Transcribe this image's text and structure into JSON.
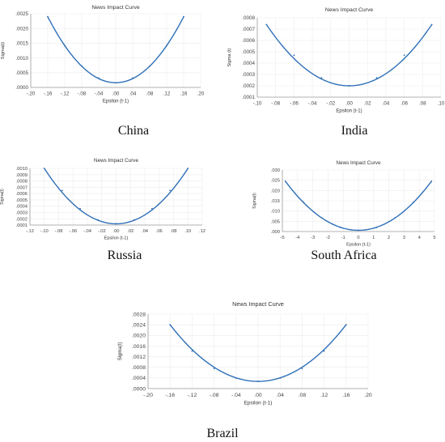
{
  "captions": [
    "China",
    "India",
    "Russia",
    "South Africa",
    "Brazil"
  ],
  "chart_data": [
    {
      "type": "line",
      "title": "News Impact Curve",
      "xlabel": "Epsilon (t-1)",
      "ylabel": "Sigma(t)",
      "xlim": [
        -0.2,
        0.2
      ],
      "ylim": [
        0.0,
        0.0025
      ],
      "xticks": [
        "-.20",
        "-.16",
        "-.12",
        "-.08",
        "-.04",
        ".00",
        ".04",
        ".08",
        ".12",
        ".16",
        ".20"
      ],
      "yticks": [
        ".0000",
        ".0005",
        ".0010",
        ".0015",
        ".0020",
        ".0025"
      ],
      "grid": true,
      "series": [
        {
          "x": [
            -0.16,
            -0.12,
            -0.08,
            -0.04,
            0.0,
            0.04,
            0.08,
            0.12,
            0.16
          ],
          "y": [
            0.0024,
            0.00142,
            0.00072,
            0.00032,
            0.00016,
            0.00032,
            0.00072,
            0.00142,
            0.0024
          ]
        }
      ]
    },
    {
      "type": "line",
      "title": "News Impact Curve",
      "xlabel": "Epsilon (t-1)",
      "ylabel": "Sigma (t)",
      "xlim": [
        -0.1,
        0.1
      ],
      "ylim": [
        0.0001,
        0.0008
      ],
      "xticks": [
        "-.10",
        "-.08",
        "-.06",
        "-.04",
        "-.02",
        ".00",
        ".02",
        ".04",
        ".06",
        ".08",
        ".10"
      ],
      "yticks": [
        ".0001",
        ".0002",
        ".0003",
        ".0004",
        ".0005",
        ".0006",
        ".0007",
        ".0008"
      ],
      "grid": true,
      "series": [
        {
          "x": [
            -0.09,
            -0.06,
            -0.03,
            0.0,
            0.03,
            0.06,
            0.09
          ],
          "y": [
            0.00074,
            0.00047,
            0.00027,
            0.0002,
            0.00027,
            0.00047,
            0.00074
          ]
        }
      ]
    },
    {
      "type": "line",
      "title": "News Impact Curve",
      "xlabel": "Epsilon (t-1)",
      "ylabel": "Sigma(t)",
      "xlim": [
        -0.12,
        0.12
      ],
      "ylim": [
        0.0001,
        0.001
      ],
      "xticks": [
        "-.12",
        "-.10",
        "-.08",
        "-.06",
        "-.04",
        "-.02",
        ".00",
        ".02",
        ".04",
        ".06",
        ".08",
        ".10",
        ".12"
      ],
      "yticks": [
        ".0001",
        ".0002",
        ".0003",
        ".0004",
        ".0005",
        ".0006",
        ".0007",
        ".0008",
        ".0009",
        ".0010"
      ],
      "grid": true,
      "series": [
        {
          "x": [
            -0.1,
            -0.075,
            -0.05,
            -0.025,
            0.0,
            0.025,
            0.05,
            0.075,
            0.1
          ],
          "y": [
            0.001,
            0.00065,
            0.00036,
            0.00018,
            0.00012,
            0.00018,
            0.00036,
            0.00065,
            0.001
          ]
        }
      ]
    },
    {
      "type": "line",
      "title": "News Impact Curve",
      "xlabel": "Epsilon (t-1)",
      "ylabel": "Sigma(t)",
      "xlim": [
        -5,
        5
      ],
      "ylim": [
        0.0,
        0.03
      ],
      "xticks": [
        "-5",
        "-4",
        "-3",
        "-2",
        "-1",
        "0",
        "1",
        "2",
        "3",
        "4",
        "5"
      ],
      "yticks": [
        ".000",
        ".005",
        ".010",
        ".015",
        ".020",
        ".025",
        ".030"
      ],
      "grid": true,
      "series": [
        {
          "x": [
            -4.8,
            -3.6,
            -2.4,
            -1.2,
            0.0,
            1.2,
            2.4,
            3.6,
            4.8
          ],
          "y": [
            0.0245,
            0.0142,
            0.0066,
            0.002,
            0.0006,
            0.002,
            0.0066,
            0.0142,
            0.0245
          ]
        }
      ]
    },
    {
      "type": "line",
      "title": "News Impact Curve",
      "xlabel": "Epsilon (t-1)",
      "ylabel": "Sigma(t)",
      "xlim": [
        -0.2,
        0.2
      ],
      "ylim": [
        0.0,
        0.0028
      ],
      "xticks": [
        "-.20",
        "-.16",
        "-.12",
        "-.08",
        "-.04",
        ".00",
        ".04",
        ".08",
        ".12",
        ".16",
        ".20"
      ],
      "yticks": [
        ".0000",
        ".0004",
        ".0008",
        ".0012",
        ".0016",
        ".0020",
        ".0024",
        ".0028"
      ],
      "grid": true,
      "series": [
        {
          "x": [
            -0.16,
            -0.12,
            -0.08,
            -0.04,
            0.0,
            0.04,
            0.08,
            0.12,
            0.16
          ],
          "y": [
            0.0024,
            0.00141,
            0.00075,
            0.00039,
            0.00027,
            0.00039,
            0.00075,
            0.00141,
            0.0024
          ]
        }
      ]
    }
  ]
}
